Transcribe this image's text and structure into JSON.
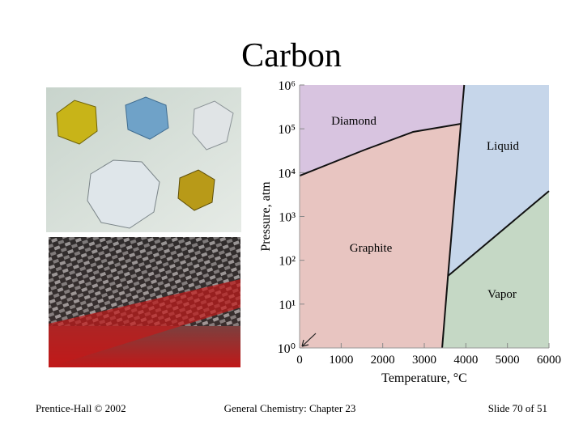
{
  "slide": {
    "title": "Carbon",
    "footer": {
      "left": "Prentice-Hall © 2002",
      "center": "General Chemistry: Chapter 23",
      "right": "Slide 70 of 51"
    }
  },
  "chart_data": {
    "type": "phase-diagram",
    "x_label": "Temperature, °C",
    "y_label": "Pressure, atm",
    "xlim": [
      0,
      6000
    ],
    "xticks": [
      0,
      1000,
      2000,
      3000,
      4000,
      5000,
      6000
    ],
    "ylim": [
      1,
      1000000
    ],
    "y_scale": "log",
    "yticks": [
      {
        "value": 1,
        "label": "10⁰"
      },
      {
        "value": 10,
        "label": "10¹"
      },
      {
        "value": 100,
        "label": "10²"
      },
      {
        "value": 1000,
        "label": "10³"
      },
      {
        "value": 10000,
        "label": "10⁴"
      },
      {
        "value": 100000,
        "label": "10⁵"
      },
      {
        "value": 1000000,
        "label": "10⁶"
      }
    ],
    "regions": [
      {
        "name": "Diamond",
        "color": "#d8c4e0"
      },
      {
        "name": "Graphite",
        "color": "#e8c5c1"
      },
      {
        "name": "Liquid",
        "color": "#c6d6ea"
      },
      {
        "name": "Vapor",
        "color": "#c5d8c5"
      }
    ],
    "boundaries": [
      {
        "x": [
          0,
          1560,
          2730,
          3880
        ],
        "values": [
          8500,
          33000,
          85000,
          130000
        ]
      },
      {
        "x": [
          3570,
          3880,
          3960
        ],
        "values": [
          44,
          130000,
          1000000
        ]
      },
      {
        "x": [
          3570,
          6000
        ],
        "values": [
          44,
          3800
        ]
      },
      {
        "x": [
          3430,
          3570
        ],
        "values": [
          1,
          44
        ]
      }
    ]
  }
}
